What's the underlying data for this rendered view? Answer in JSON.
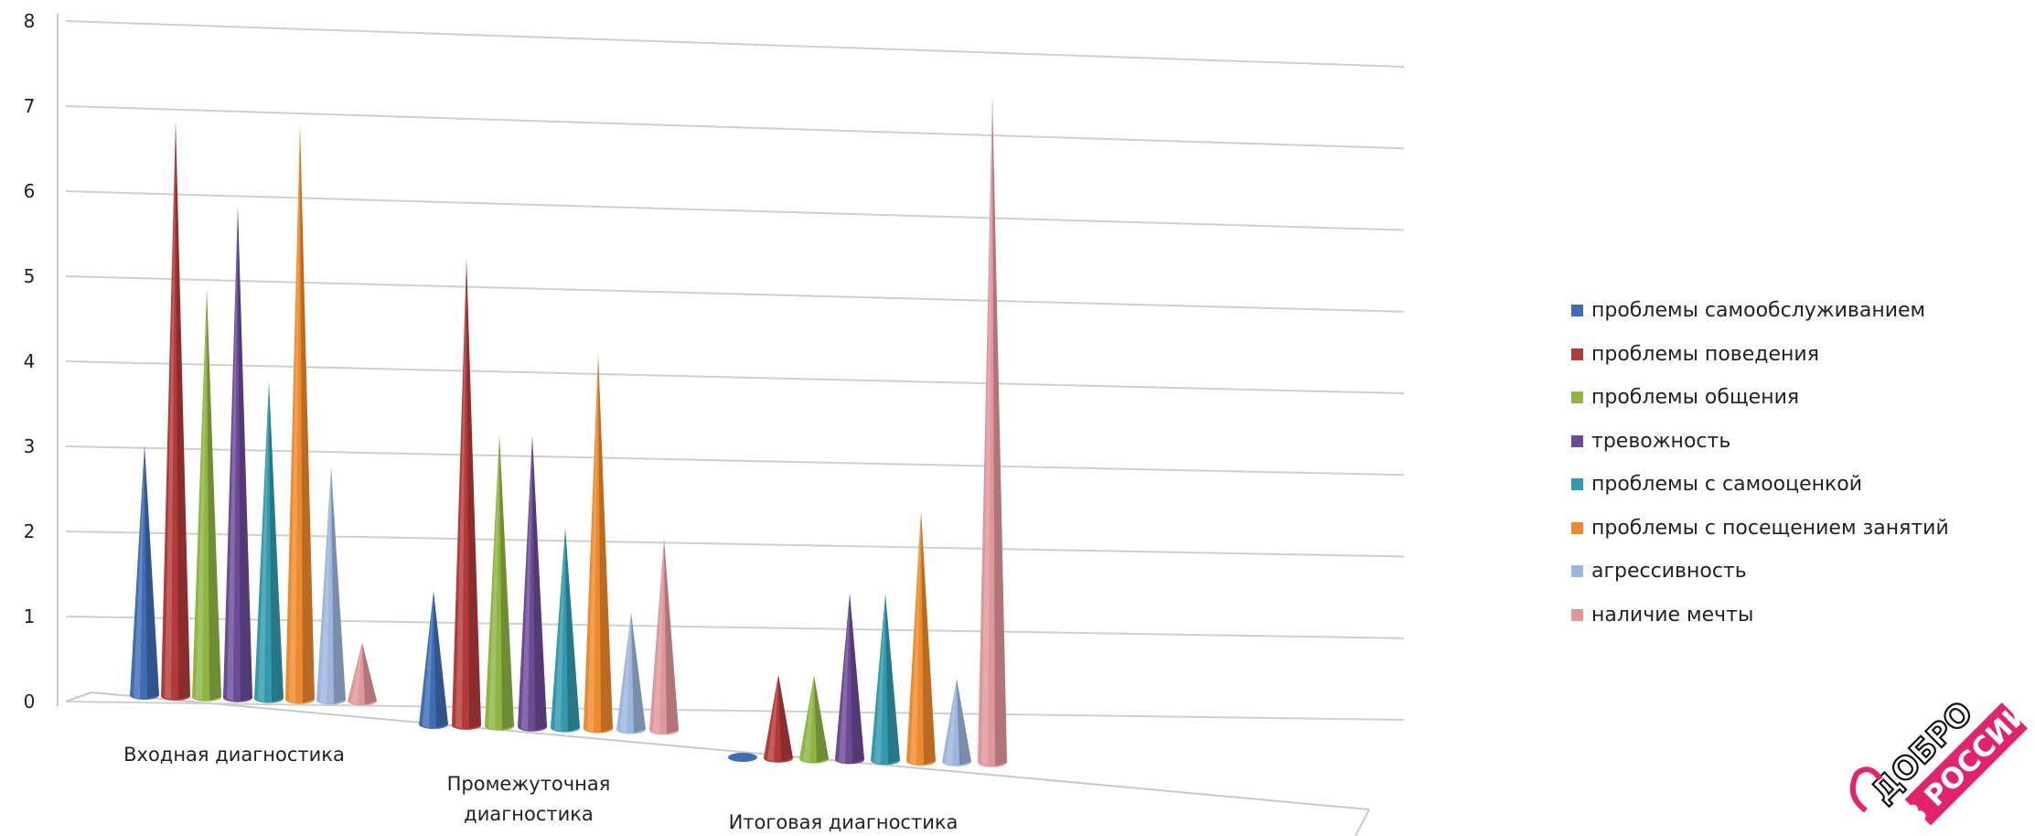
{
  "chart_data": {
    "type": "bar",
    "style": "3d-cone",
    "title": "",
    "xlabel": "",
    "ylabel": "",
    "ylim": [
      0,
      8
    ],
    "yticks": [
      "0",
      "1",
      "2",
      "3",
      "4",
      "5",
      "6",
      "7",
      "8"
    ],
    "grid": true,
    "legend_position": "right",
    "categories": [
      "Входная диагностика",
      "Промежуточная диагностика",
      "Итоговая диагностика"
    ],
    "category_lines": [
      [
        "Входная диагностика"
      ],
      [
        "Промежуточная",
        "диагностика"
      ],
      [
        "Итоговая диагностика"
      ]
    ],
    "series": [
      {
        "name": "проблемы самообслуживанием",
        "color": "#3f6db3",
        "values": [
          3,
          1.6,
          0
        ]
      },
      {
        "name": "проблемы поведения",
        "color": "#b33a3a",
        "values": [
          6.9,
          5.6,
          1
        ]
      },
      {
        "name": "проблемы общения",
        "color": "#8fb543",
        "values": [
          4.9,
          3.5,
          1
        ]
      },
      {
        "name": "тревожность",
        "color": "#6b4b96",
        "values": [
          5.9,
          3.5,
          2
        ]
      },
      {
        "name": "проблемы с самооценкой",
        "color": "#3399ad",
        "values": [
          3.8,
          2.4,
          2
        ]
      },
      {
        "name": "проблемы с посещением занятий",
        "color": "#ee8a2e",
        "values": [
          6.9,
          4.5,
          3
        ]
      },
      {
        "name": "агрессивность",
        "color": "#9db6dd",
        "values": [
          2.8,
          1.4,
          1
        ]
      },
      {
        "name": "наличие мечты",
        "color": "#e0979b",
        "values": [
          0.7,
          2.3,
          8
        ]
      }
    ]
  },
  "logo": {
    "line1": "ДОБРО",
    "line2": "В РОССИИ"
  }
}
